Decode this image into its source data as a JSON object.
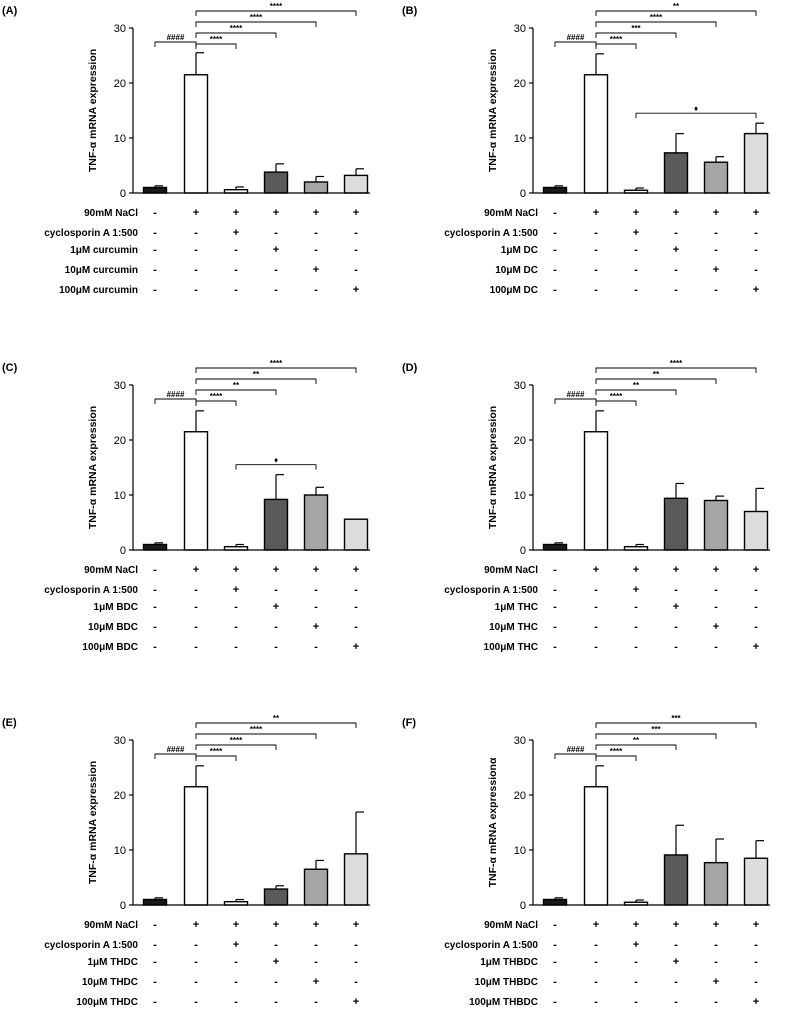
{
  "chart_data": [
    {
      "panel": "(A)",
      "type": "bar",
      "ylabel": "TNF-α mRNA expression",
      "ylim": [
        0,
        30
      ],
      "yticks": [
        0,
        10,
        20,
        30
      ],
      "values": [
        1.0,
        21.5,
        0.6,
        3.8,
        2.0,
        3.2
      ],
      "errors": [
        0.3,
        4.0,
        0.5,
        1.5,
        1.0,
        1.2
      ],
      "treatments": [
        {
          "label": "90mM NaCl",
          "signs": [
            "-",
            "+",
            "+",
            "+",
            "+",
            "+"
          ]
        },
        {
          "label": "cyclosporin A 1:500",
          "signs": [
            "-",
            "-",
            "+",
            "-",
            "-",
            "-"
          ]
        },
        {
          "label": "1μM  curcumin",
          "signs": [
            "-",
            "-",
            "-",
            "+",
            "-",
            "-"
          ]
        },
        {
          "label": "10μM  curcumin",
          "signs": [
            "-",
            "-",
            "-",
            "-",
            "+",
            "-"
          ]
        },
        {
          "label": "100μM  curcumin",
          "signs": [
            "-",
            "-",
            "-",
            "-",
            "-",
            "+"
          ]
        }
      ],
      "brackets": [
        {
          "from": 0,
          "to": 1,
          "label": "####"
        },
        {
          "from": 1,
          "to": 2,
          "label": "****"
        },
        {
          "from": 1,
          "to": 3,
          "label": "****"
        },
        {
          "from": 1,
          "to": 4,
          "label": "****"
        },
        {
          "from": 1,
          "to": 5,
          "label": "****"
        }
      ]
    },
    {
      "panel": "(B)",
      "type": "bar",
      "ylabel": "TNF-α mRNA expression",
      "ylim": [
        0,
        30
      ],
      "yticks": [
        0,
        10,
        20,
        30
      ],
      "values": [
        1.0,
        21.5,
        0.5,
        7.3,
        5.6,
        10.8
      ],
      "errors": [
        0.3,
        3.8,
        0.4,
        3.5,
        1.0,
        1.9
      ],
      "treatments": [
        {
          "label": "90mM NaCl",
          "signs": [
            "-",
            "+",
            "+",
            "+",
            "+",
            "+"
          ]
        },
        {
          "label": "cyclosporin A 1:500",
          "signs": [
            "-",
            "-",
            "+",
            "-",
            "-",
            "-"
          ]
        },
        {
          "label": "1μM  DC",
          "signs": [
            "-",
            "-",
            "-",
            "+",
            "-",
            "-"
          ]
        },
        {
          "label": "10μM  DC",
          "signs": [
            "-",
            "-",
            "-",
            "-",
            "+",
            "-"
          ]
        },
        {
          "label": "100μM  DC",
          "signs": [
            "-",
            "-",
            "-",
            "-",
            "-",
            "+"
          ]
        }
      ],
      "brackets": [
        {
          "from": 0,
          "to": 1,
          "label": "####"
        },
        {
          "from": 1,
          "to": 2,
          "label": "****"
        },
        {
          "from": 1,
          "to": 3,
          "label": "***"
        },
        {
          "from": 1,
          "to": 4,
          "label": "****"
        },
        {
          "from": 1,
          "to": 5,
          "label": "**"
        },
        {
          "from": 2,
          "to": 5,
          "label": "♦"
        }
      ]
    },
    {
      "panel": "(C)",
      "type": "bar",
      "ylabel": "TNF-α mRNA expression",
      "ylim": [
        0,
        30
      ],
      "yticks": [
        0,
        10,
        20,
        30
      ],
      "values": [
        1.0,
        21.5,
        0.6,
        9.2,
        10.0,
        5.6
      ],
      "errors": [
        0.3,
        3.8,
        0.4,
        4.5,
        1.4,
        0.0
      ],
      "treatments": [
        {
          "label": "90mM NaCl",
          "signs": [
            "-",
            "+",
            "+",
            "+",
            "+",
            "+"
          ]
        },
        {
          "label": "cyclosporin A 1:500",
          "signs": [
            "-",
            "-",
            "+",
            "-",
            "-",
            "-"
          ]
        },
        {
          "label": "1μM  BDC",
          "signs": [
            "-",
            "-",
            "-",
            "+",
            "-",
            "-"
          ]
        },
        {
          "label": "10μM  BDC",
          "signs": [
            "-",
            "-",
            "-",
            "-",
            "+",
            "-"
          ]
        },
        {
          "label": "100μM  BDC",
          "signs": [
            "-",
            "-",
            "-",
            "-",
            "-",
            "+"
          ]
        }
      ],
      "brackets": [
        {
          "from": 0,
          "to": 1,
          "label": "####"
        },
        {
          "from": 1,
          "to": 2,
          "label": "****"
        },
        {
          "from": 1,
          "to": 3,
          "label": "**"
        },
        {
          "from": 1,
          "to": 4,
          "label": "**"
        },
        {
          "from": 1,
          "to": 5,
          "label": "****"
        },
        {
          "from": 2,
          "to": 4,
          "label": "♦"
        }
      ]
    },
    {
      "panel": "(D)",
      "type": "bar",
      "ylabel": "TNF-α mRNA expression",
      "ylim": [
        0,
        30
      ],
      "yticks": [
        0,
        10,
        20,
        30
      ],
      "values": [
        1.0,
        21.5,
        0.6,
        9.4,
        9.0,
        7.0
      ],
      "errors": [
        0.3,
        3.8,
        0.4,
        2.7,
        0.8,
        4.2
      ],
      "treatments": [
        {
          "label": "90mM NaCl",
          "signs": [
            "-",
            "+",
            "+",
            "+",
            "+",
            "+"
          ]
        },
        {
          "label": "cyclosporin A 1:500",
          "signs": [
            "-",
            "-",
            "+",
            "-",
            "-",
            "-"
          ]
        },
        {
          "label": "1μM  THC",
          "signs": [
            "-",
            "-",
            "-",
            "+",
            "-",
            "-"
          ]
        },
        {
          "label": "10μM  THC",
          "signs": [
            "-",
            "-",
            "-",
            "-",
            "+",
            "-"
          ]
        },
        {
          "label": "100μM  THC",
          "signs": [
            "-",
            "-",
            "-",
            "-",
            "-",
            "+"
          ]
        }
      ],
      "brackets": [
        {
          "from": 0,
          "to": 1,
          "label": "####"
        },
        {
          "from": 1,
          "to": 2,
          "label": "****"
        },
        {
          "from": 1,
          "to": 3,
          "label": "**"
        },
        {
          "from": 1,
          "to": 4,
          "label": "**"
        },
        {
          "from": 1,
          "to": 5,
          "label": "****"
        }
      ]
    },
    {
      "panel": "(E)",
      "type": "bar",
      "ylabel": "TNF-α mRNA expression",
      "ylim": [
        0,
        30
      ],
      "yticks": [
        0,
        10,
        20,
        30
      ],
      "values": [
        1.0,
        21.5,
        0.6,
        2.9,
        6.5,
        9.3
      ],
      "errors": [
        0.3,
        3.8,
        0.4,
        0.6,
        1.6,
        7.6
      ],
      "treatments": [
        {
          "label": "90mM NaCl",
          "signs": [
            "-",
            "+",
            "+",
            "+",
            "+",
            "+"
          ]
        },
        {
          "label": "cyclosporin A 1:500",
          "signs": [
            "-",
            "-",
            "+",
            "-",
            "-",
            "-"
          ]
        },
        {
          "label": "1μM  THDC",
          "signs": [
            "-",
            "-",
            "-",
            "+",
            "-",
            "-"
          ]
        },
        {
          "label": "10μM  THDC",
          "signs": [
            "-",
            "-",
            "-",
            "-",
            "+",
            "-"
          ]
        },
        {
          "label": "100μM  THDC",
          "signs": [
            "-",
            "-",
            "-",
            "-",
            "-",
            "+"
          ]
        }
      ],
      "brackets": [
        {
          "from": 0,
          "to": 1,
          "label": "####"
        },
        {
          "from": 1,
          "to": 2,
          "label": "****"
        },
        {
          "from": 1,
          "to": 3,
          "label": "****"
        },
        {
          "from": 1,
          "to": 4,
          "label": "****"
        },
        {
          "from": 1,
          "to": 5,
          "label": "**"
        }
      ]
    },
    {
      "panel": "(F)",
      "type": "bar",
      "ylabel": "TNF-α mRNA expressionα",
      "ylim": [
        0,
        30
      ],
      "yticks": [
        0,
        10,
        20,
        30
      ],
      "values": [
        1.0,
        21.5,
        0.5,
        9.1,
        7.7,
        8.5
      ],
      "errors": [
        0.3,
        3.8,
        0.4,
        5.4,
        4.3,
        3.2
      ],
      "treatments": [
        {
          "label": "90mM NaCl",
          "signs": [
            "-",
            "+",
            "+",
            "+",
            "+",
            "+"
          ]
        },
        {
          "label": "cyclosporin A 1:500",
          "signs": [
            "-",
            "-",
            "+",
            "-",
            "-",
            "-"
          ]
        },
        {
          "label": "1μM  THBDC",
          "signs": [
            "-",
            "-",
            "-",
            "+",
            "-",
            "-"
          ]
        },
        {
          "label": "10μM  THBDC",
          "signs": [
            "-",
            "-",
            "-",
            "-",
            "+",
            "-"
          ]
        },
        {
          "label": "100μM  THBDC",
          "signs": [
            "-",
            "-",
            "-",
            "-",
            "-",
            "+"
          ]
        }
      ],
      "brackets": [
        {
          "from": 0,
          "to": 1,
          "label": "####"
        },
        {
          "from": 1,
          "to": 2,
          "label": "****"
        },
        {
          "from": 1,
          "to": 3,
          "label": "**"
        },
        {
          "from": 1,
          "to": 4,
          "label": "***"
        },
        {
          "from": 1,
          "to": 5,
          "label": "***"
        }
      ]
    }
  ],
  "bar_fills": [
    "#1a1a1a",
    "#ffffff",
    "#ffffff",
    "#5a5a5a",
    "#a6a6a6",
    "#dcdcdc"
  ],
  "ink_color": "#000000"
}
